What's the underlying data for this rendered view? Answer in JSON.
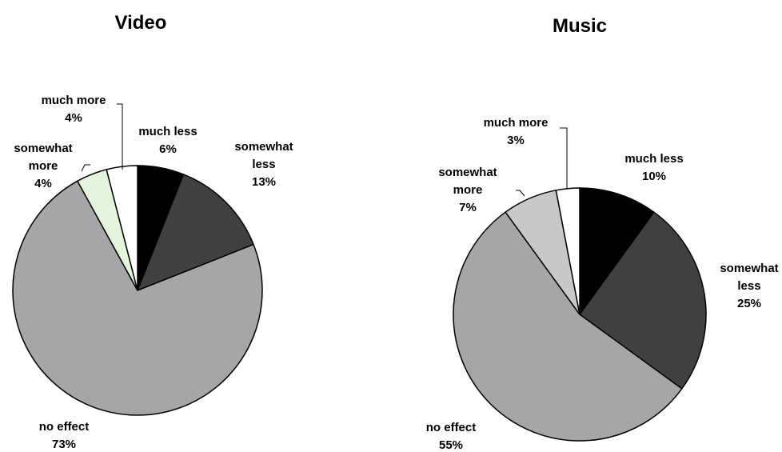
{
  "chart_data": [
    {
      "type": "pie",
      "title": "Video",
      "slices": [
        {
          "label": "much less",
          "value": 6,
          "value_label": "6%",
          "color": "#000000"
        },
        {
          "label": "somewhat less",
          "value": 13,
          "value_label": "13%",
          "color": "#404040"
        },
        {
          "label": "no effect",
          "value": 73,
          "value_label": "73%",
          "color": "#a6a6a6"
        },
        {
          "label": "somewhat more",
          "value": 4,
          "value_label": "4%",
          "color": "#e2f5dc"
        },
        {
          "label": "much more",
          "value": 4,
          "value_label": "4%",
          "color": "#ffffff"
        }
      ]
    },
    {
      "type": "pie",
      "title": "Music",
      "slices": [
        {
          "label": "much less",
          "value": 10,
          "value_label": "10%",
          "color": "#000000"
        },
        {
          "label": "somewhat less",
          "value": 25,
          "value_label": "25%",
          "color": "#404040"
        },
        {
          "label": "no effect",
          "value": 55,
          "value_label": "55%",
          "color": "#a6a6a6"
        },
        {
          "label": "somewhat more",
          "value": 7,
          "value_label": "7%",
          "color": "#c8c8c8"
        },
        {
          "label": "much more",
          "value": 3,
          "value_label": "3%",
          "color": "#ffffff"
        }
      ]
    }
  ]
}
